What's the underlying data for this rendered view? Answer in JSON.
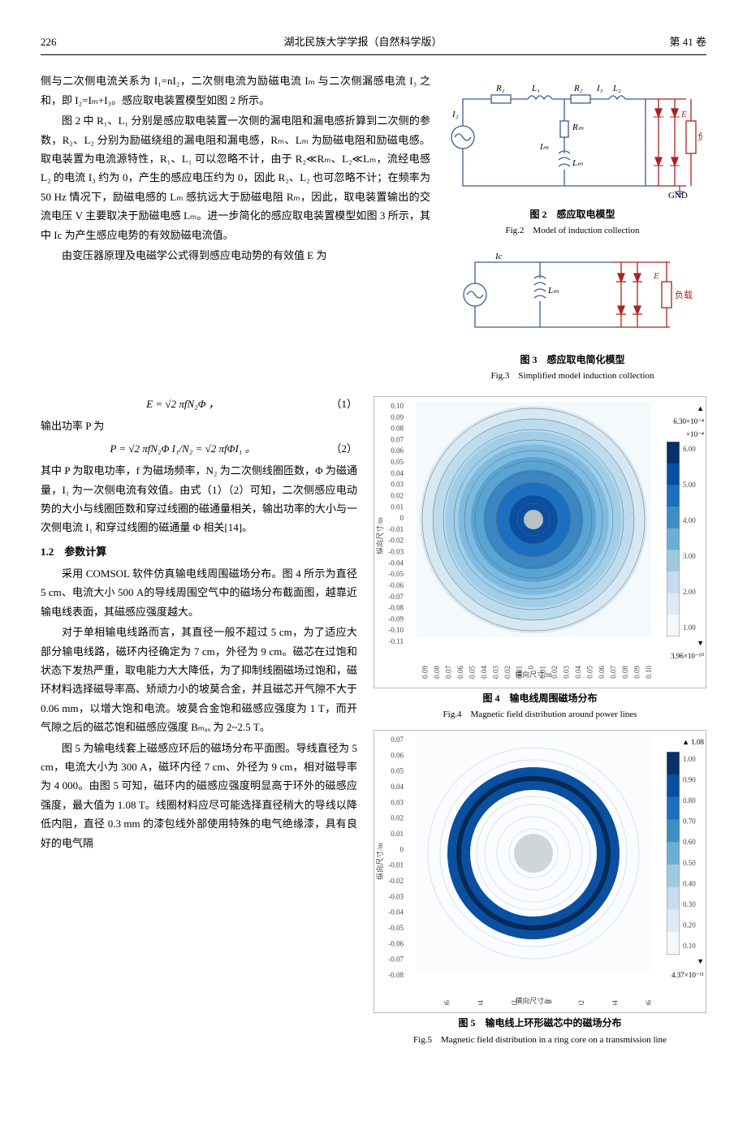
{
  "header": {
    "page": "226",
    "journal": "湖北民族大学学报（自然科学版）",
    "volume": "第 41 卷"
  },
  "body_text": {
    "p1": "侧与二次侧电流关系为 I₁=nI₂，二次侧电流为励磁电流 Iₘ 与二次侧漏感电流 I₃ 之和，即 I₂=Iₘ+I₃。感应取电装置模型如图 2 所示。",
    "p2": "图 2 中 R₁、L₁ 分别是感应取电装置一次侧的漏电阻和漏电感折算到二次侧的参数，R₂、L₂ 分别为励磁绕组的漏电阻和漏电感，Rₘ、Lₘ 为励磁电阻和励磁电感。取电装置为电流源特性，R₁、L₁ 可以忽略不计，由于 R₂≪Rₘ、L₂≪Lₘ，流经电感 L₂ 的电流 I₃ 约为 0，产生的感应电压约为 0，因此 R₂、L₂ 也可忽略不计；在频率为 50 Hz 情况下，励磁电感的 Lₘ 感抗远大于励磁电阻 Rₘ，因此，取电装置输出的交流电压 V 主要取决于励磁电感 Lₘ。进一步简化的感应取电装置模型如图 3 所示，其中 Ic 为产生感应电势的有效励磁电流值。",
    "p3": "由变压器原理及电磁学公式得到感应电动势的有效值 E 为",
    "eq1": "E = √2 πfN₂Φ ，",
    "eq1_num": "（1）",
    "p4": "输出功率 P 为",
    "eq2": "P = √2 πfN₂Φ I₁/N₂ = √2 πfΦI₁ 。",
    "eq2_num": "（2）",
    "p5": "其中 P 为取电功率，f 为磁场频率，N₂ 为二次侧线圈匝数，Φ 为磁通量，I₁ 为一次侧电流有效值。由式（1）（2）可知，二次侧感应电动势的大小与线圈匝数和穿过线圈的磁通量相关，输出功率的大小与一次侧电流 I₁ 和穿过线圈的磁通量 Φ 相关[14]。",
    "s12": "1.2　参数计算",
    "p6": "采用 COMSOL 软件仿真输电线周围磁场分布。图 4 所示为直径 5 cm、电流大小 500 A的导线周围空气中的磁场分布截面图，越靠近输电线表面，其磁感应强度越大。",
    "p7": "对于单相输电线路而言，其直径一般不超过 5 cm，为了适应大部分输电线路，磁环内径确定为 7 cm，外径为 9 cm。磁芯在过饱和状态下发热严重，取电能力大大降低，为了抑制线圈磁场过饱和，磁环材料选择磁导率高、矫顽力小的坡莫合金，并且磁芯开气隙不大于 0.06 mm，以增大饱和电流。坡莫合金饱和磁感应强度为 1 T，而开气隙之后的磁芯饱和磁感应强度 Bₘₐₓ 为 2~2.5 T。",
    "p8": "图 5 为输电线套上磁感应环后的磁场分布平面图。导线直径为 5 cm，电流大小为 300 A，磁环内径 7 cm、外径为 9 cm，相对磁导率为 4 000。由图 5 可知，磁环内的磁感应强度明显高于环外的磁感应强度，最大值为 1.08 T。线圈材料应尽可能选择直径稍大的导线以降低内阻，直径 0.3 mm 的漆包线外部使用特殊的电气绝缘漆，具有良好的电气隔"
  },
  "fig2": {
    "caption_cn": "图 2　感应取电模型",
    "caption_en": "Fig.2　Model of induction collection",
    "labels": [
      "R₁",
      "L₁",
      "R₂",
      "I₃",
      "L₂",
      "I₂",
      "Rₘ",
      "Iₘ",
      "Lₘ",
      "E",
      "负载",
      "GND"
    ],
    "line_color": "#3b5a9a",
    "accent_color": "#b02020"
  },
  "fig3": {
    "caption_cn": "图 3　感应取电简化模型",
    "caption_en": "Fig.3　Simplified model induction collection",
    "labels": [
      "Ic",
      "Lₘ",
      "E",
      "负载"
    ],
    "line_color": "#3b5a9a",
    "accent_color": "#b02020"
  },
  "fig4": {
    "caption_cn": "图 4　输电线周围磁场分布",
    "caption_en": "Fig.4　Magnetic field distribution around power lines",
    "xlabel": "横向尺寸/m",
    "ylabel": "纵向尺寸/m",
    "x_ticks": [
      "-0.10",
      "-0.09",
      "-0.08",
      "-0.07",
      "-0.06",
      "-0.05",
      "-0.04",
      "-0.03",
      "-0.02",
      "-0.01",
      "0",
      "0.01",
      "0.02",
      "0.03",
      "0.04",
      "0.05",
      "0.06",
      "0.07",
      "0.08",
      "0.09",
      "0.10"
    ],
    "y_ticks": [
      "-0.11",
      "-0.10",
      "-0.09",
      "-0.08",
      "-0.07",
      "-0.06",
      "-0.05",
      "-0.04",
      "-0.03",
      "-0.02",
      "-0.01",
      "0",
      "0.01",
      "0.02",
      "0.03",
      "0.04",
      "0.05",
      "0.06",
      "0.07",
      "0.08",
      "0.09",
      "0.10"
    ],
    "cbar_max_label": "▲ 6.30×10⁻⁴",
    "cbar_exp": "×10⁻⁴",
    "cbar_ticks": [
      "6.00",
      "5.00",
      "4.00",
      "3.00",
      "2.00",
      "1.00"
    ],
    "cbar_min_label": "▼ 3.96×10⁻¹⁰",
    "cbar_colors": [
      "#08306b",
      "#0a4fa0",
      "#1b6fc0",
      "#3e8ec4",
      "#6baed6",
      "#9ecae1",
      "#c6dbef",
      "#deebf7",
      "#f3f8fd"
    ],
    "bg_color": "#f4f9fc",
    "ring_colors": [
      "#d7e8f3",
      "#bcdcee",
      "#9fcee8",
      "#7fbbe0",
      "#5aa4d3",
      "#3a87c2",
      "#1b6fc0",
      "#0a4fa0"
    ],
    "center_r": 12,
    "center_color": "#b7c2c7"
  },
  "fig5": {
    "caption_cn": "图 5　输电线上环形磁芯中的磁场分布",
    "caption_en": "Fig.5　Magnetic field distribution in a ring core on a transmission line",
    "xlabel": "横向尺寸/m",
    "ylabel": "纵向尺寸/m",
    "x_ticks": [
      "-0.08",
      "-0.06",
      "-0.04",
      "-0.02",
      "0",
      "0.02",
      "0.04",
      "0.06"
    ],
    "y_ticks": [
      "-0.08",
      "-0.07",
      "-0.06",
      "-0.05",
      "-0.04",
      "-0.03",
      "-0.02",
      "-0.01",
      "0",
      "0.01",
      "0.02",
      "0.03",
      "0.04",
      "0.05",
      "0.06",
      "0.07"
    ],
    "cbar_max_label": "▲ 1.08",
    "cbar_ticks": [
      "1.00",
      "0.90",
      "0.80",
      "0.70",
      "0.60",
      "0.50",
      "0.40",
      "0.30",
      "0.20",
      "0.10"
    ],
    "cbar_min_label": "▼ 4.37×10⁻¹¹",
    "cbar_colors": [
      "#08306b",
      "#0a4fa0",
      "#1b6fc0",
      "#3e8ec4",
      "#6baed6",
      "#9ecae1",
      "#c6dbef",
      "#deebf7",
      "#f3f8fd"
    ],
    "bg_color": "#fafcfe",
    "ring_inner": 40,
    "ring_outer": 55,
    "ring_color": "#0a4fa0",
    "center_r": 14,
    "center_color": "#cfd6d8"
  }
}
